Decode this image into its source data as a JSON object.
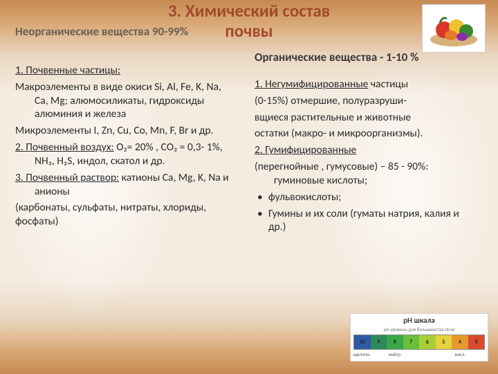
{
  "title_line1": "3. Химический состав",
  "title_line2": "почвы",
  "left": {
    "heading": "Неорганические вещества 90-99%",
    "p1_head": "1. Почвенные частицы:",
    "p2": "Макроэлементы в виде окиси Si, Al, Fe, K, Na, Ca, Mg; алюмосиликаты, гидроксиды алюминия и железа",
    "p3": "Микроэлементы I, Zn, Cu, Co, Mn, F, Br и др.",
    "p4_head": "2. Почвенный воздух:",
    "p4_tail": " О₂= 20% , СО₂ = 0,3- 1%, NH₃,   H₂S, индол, скатол и др.",
    "p5_head": "3. Почвенный раствор:",
    "p5_tail": " катионы Ca, Mg, K, Na и анионы",
    "p6": "(карбонаты, сульфаты, нитраты, хлориды, фосфаты)"
  },
  "right": {
    "heading": "Органические вещества - 1-10 %",
    "p1_head": "1. Негумифицированные",
    "p1_tail": "  частицы",
    "p2": "(0-15%) отмершие, полуразруши-",
    "p3": "вщиеся растительные и животные",
    "p4": "остатки (макро- и микроорганизмы).",
    "p5_head": "2. Гумифицированные",
    "p6": "(перегнойные , гумусовые) – 85 - 90%: гуминовые кислоты;",
    "b1": "фульвокислоты;",
    "b2": "Гумины  и их соли (гуматы натрия, калия и др.)"
  },
  "ph": {
    "title": "pH шкала",
    "sub": "pH уровень для большинства почв",
    "cells": [
      {
        "v": "10",
        "c": "#2e5aa8"
      },
      {
        "v": "9",
        "c": "#2e8a5a"
      },
      {
        "v": "8",
        "c": "#3aa64a"
      },
      {
        "v": "7",
        "c": "#6abf3a"
      },
      {
        "v": "6",
        "c": "#a8cf3a"
      },
      {
        "v": "5",
        "c": "#e6d23a"
      },
      {
        "v": "4",
        "c": "#e69a2e"
      },
      {
        "v": "3",
        "c": "#d94a2e"
      }
    ],
    "axis": [
      "щелочн.",
      "",
      "нейтр.",
      "",
      "",
      "",
      "кисл.",
      ""
    ]
  },
  "colors": {
    "title": "#a24a2a",
    "subtitle_left": "#6b6054"
  }
}
